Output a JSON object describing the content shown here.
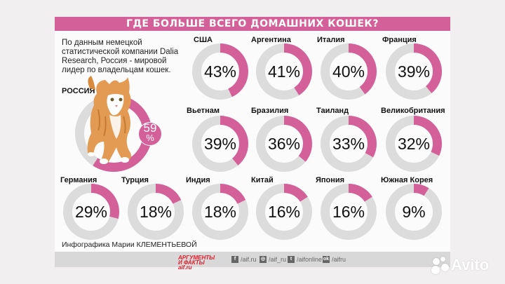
{
  "header": {
    "title": "ГДЕ БОЛЬШЕ ВСЕГО ДОМАШНИХ КОШЕК?"
  },
  "intro": {
    "text": "По данным немецкой статистической компании Dalia Research, Россия - мировой лидер по владельцам кошек."
  },
  "russia": {
    "label": "РОССИЯ",
    "value": "59",
    "percent_sign": "%"
  },
  "countries": [
    {
      "name": "США",
      "value": "43%"
    },
    {
      "name": "Аргентина",
      "value": "41%"
    },
    {
      "name": "Италия",
      "value": "40%"
    },
    {
      "name": "Франция",
      "value": "39%"
    },
    {
      "name": "Вьетнам",
      "value": "39%"
    },
    {
      "name": "Бразилия",
      "value": "36%"
    },
    {
      "name": "Таиланд",
      "value": "33%"
    },
    {
      "name": "Великобритания",
      "value": "32%"
    },
    {
      "name": "Германия",
      "value": "29%"
    },
    {
      "name": "Турция",
      "value": "18%"
    },
    {
      "name": "Индия",
      "value": "18%"
    },
    {
      "name": "Китай",
      "value": "16%"
    },
    {
      "name": "Япония",
      "value": "16%"
    },
    {
      "name": "Южная Корея",
      "value": "9%"
    }
  ],
  "credit": "Инфографика Марии КЛЕМЕНТЬЕВОЙ",
  "footer": {
    "logo_line1": "АРГУМЕНТЫ",
    "logo_line2": "И ФАКТЫ aif.ru",
    "social": [
      {
        "icon": "facebook-icon",
        "glyph": "f",
        "handle": "/aif.ru"
      },
      {
        "icon": "instagram-icon",
        "glyph": "◎",
        "handle": "/aif_ru"
      },
      {
        "icon": "twitter-icon",
        "glyph": "t",
        "handle": "/aifonline"
      },
      {
        "icon": "odnoklassniki-icon",
        "glyph": "ok",
        "handle": "/aifru"
      }
    ]
  },
  "watermark": {
    "text": "Avito"
  },
  "colors": {
    "accent": "#d4609a",
    "track": "#dcdcdc",
    "background": "#f1efef"
  },
  "chart_data": {
    "type": "pie",
    "title": "ГДЕ БОЛЬШЕ ВСЕГО ДОМАШНИХ КОШЕК?",
    "subtitle": "По данным немецкой статистической компании Dalia Research, Россия - мировой лидер по владельцам кошек.",
    "variant": "donut-small-multiples",
    "unit": "%",
    "categories": [
      "Россия",
      "США",
      "Аргентина",
      "Италия",
      "Франция",
      "Вьетнам",
      "Бразилия",
      "Таиланд",
      "Великобритания",
      "Германия",
      "Турция",
      "Индия",
      "Китай",
      "Япония",
      "Южная Корея"
    ],
    "values": [
      59,
      43,
      41,
      40,
      39,
      39,
      36,
      33,
      32,
      29,
      18,
      18,
      16,
      16,
      9
    ],
    "annotations": [
      "Инфографика Марии КЛЕМЕНТЬЕВОЙ"
    ]
  }
}
